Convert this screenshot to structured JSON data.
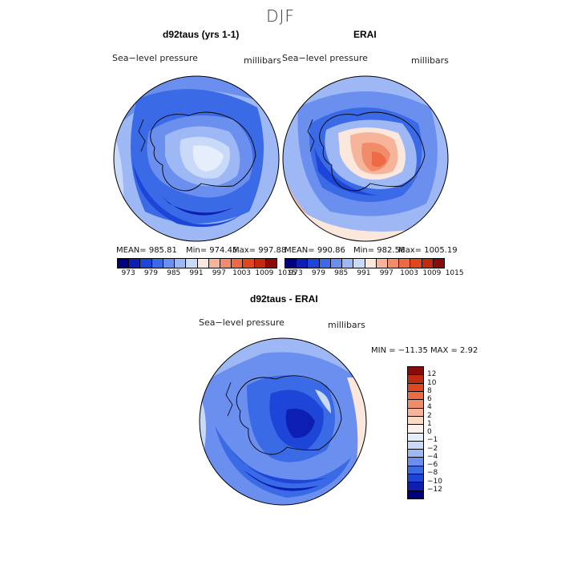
{
  "figure": {
    "title": "DJF",
    "panel1": {
      "title": "d92taus (yrs 1-1)",
      "left_label": "Sea−level pressure",
      "right_label": "millibars",
      "mean_label": "MEAN= 985.81",
      "min_label": "Min= 974.45",
      "max_label": "Max= 997.88"
    },
    "panel2": {
      "title": "ERAI",
      "left_label": "Sea−level pressure",
      "right_label": "millibars",
      "mean_label": "MEAN= 990.86",
      "min_label": "Min= 982.56",
      "max_label": "Max= 1005.19"
    },
    "panel3": {
      "title": "d92taus - ERAI",
      "left_label": "Sea−level pressure",
      "right_label": "millibars",
      "minmax_label": "MIN = −11.35 MAX =    2.92"
    }
  },
  "chart_data": [
    {
      "type": "heatmap",
      "title": "d92taus (yrs 1-1)",
      "variable": "Sea-level pressure",
      "units": "millibars",
      "projection": "south polar stereographic",
      "mean": 985.81,
      "min": 974.45,
      "max": 997.88,
      "colorbar": {
        "levels": [
          "973",
          "979",
          "985",
          "991",
          "997",
          "1003",
          "1009",
          "1015"
        ],
        "colors": [
          "#00007f",
          "#0c1fb2",
          "#1d46d8",
          "#3a6ae6",
          "#6a8fef",
          "#9db8f5",
          "#c8daf8",
          "#fbe7dc",
          "#f6b59a",
          "#f18c6a",
          "#ec6a46",
          "#e0471f",
          "#c02a10",
          "#8b0a0a"
        ]
      }
    },
    {
      "type": "heatmap",
      "title": "ERAI",
      "variable": "Sea-level pressure",
      "units": "millibars",
      "projection": "south polar stereographic",
      "mean": 990.86,
      "min": 982.56,
      "max": 1005.19,
      "colorbar": {
        "levels": [
          "973",
          "979",
          "985",
          "991",
          "997",
          "1003",
          "1009",
          "1015"
        ],
        "colors": [
          "#00007f",
          "#0c1fb2",
          "#1d46d8",
          "#3a6ae6",
          "#6a8fef",
          "#9db8f5",
          "#c8daf8",
          "#fbe7dc",
          "#f6b59a",
          "#f18c6a",
          "#ec6a46",
          "#e0471f",
          "#c02a10",
          "#8b0a0a"
        ]
      }
    },
    {
      "type": "heatmap",
      "title": "d92taus - ERAI",
      "variable": "Sea-level pressure",
      "units": "millibars",
      "projection": "south polar stereographic",
      "min": -11.35,
      "max": 2.92,
      "colorbar": {
        "levels": [
          "12",
          "10",
          "8",
          "6",
          "4",
          "2",
          "1",
          "0",
          "−1",
          "−2",
          "−4",
          "−6",
          "−8",
          "−10",
          "−12"
        ],
        "colors": [
          "#8b0a0a",
          "#c02a10",
          "#e0471f",
          "#ec6a46",
          "#f18c6a",
          "#f6b59a",
          "#fbd9c7",
          "#fbf0ea",
          "#e6eefc",
          "#c8daf8",
          "#9db8f5",
          "#6a8fef",
          "#3a6ae6",
          "#1d46d8",
          "#0c1fb2",
          "#00007f"
        ]
      }
    }
  ]
}
